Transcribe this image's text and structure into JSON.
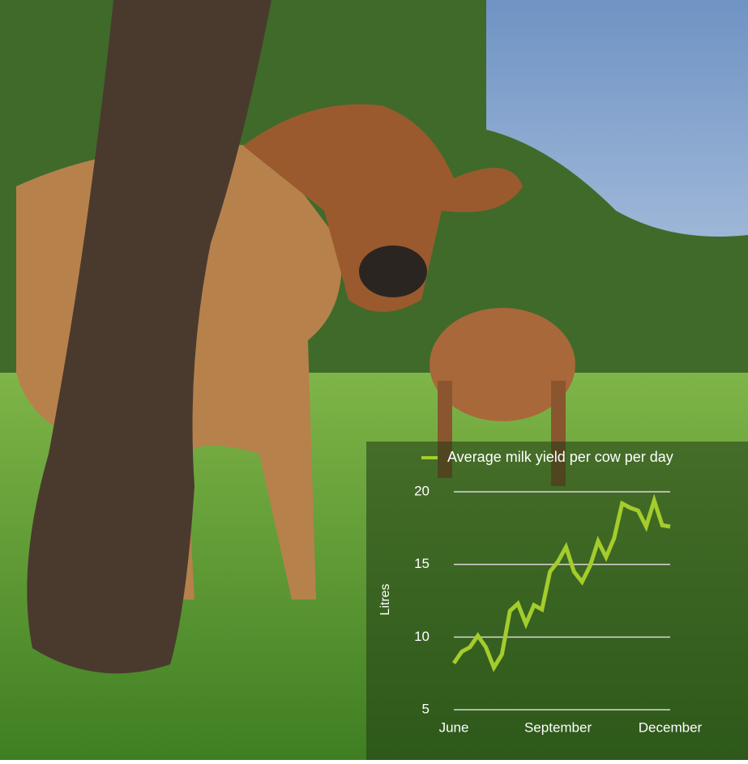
{
  "chart_data": {
    "type": "line",
    "y_label": "Litres",
    "categories": [
      "June",
      null,
      null,
      null,
      null,
      null,
      null,
      null,
      null,
      null,
      null,
      null,
      null,
      "September",
      null,
      null,
      null,
      null,
      null,
      null,
      null,
      null,
      null,
      null,
      null,
      null,
      null,
      "December"
    ],
    "series": [
      {
        "name": "Average milk yield per cow per day",
        "color": "#a4cc2c",
        "values": [
          8.2,
          9.0,
          9.3,
          10.1,
          9.3,
          7.9,
          8.8,
          11.8,
          12.3,
          10.9,
          12.2,
          11.9,
          14.5,
          15.2,
          16.2,
          14.5,
          13.8,
          14.9,
          16.6,
          15.5,
          16.8,
          19.2,
          18.9,
          18.7,
          17.6,
          19.4,
          17.7,
          17.6
        ]
      }
    ],
    "ylim": [
      5,
      20
    ],
    "yticks": [
      5,
      10,
      15,
      20
    ],
    "grid": true
  }
}
